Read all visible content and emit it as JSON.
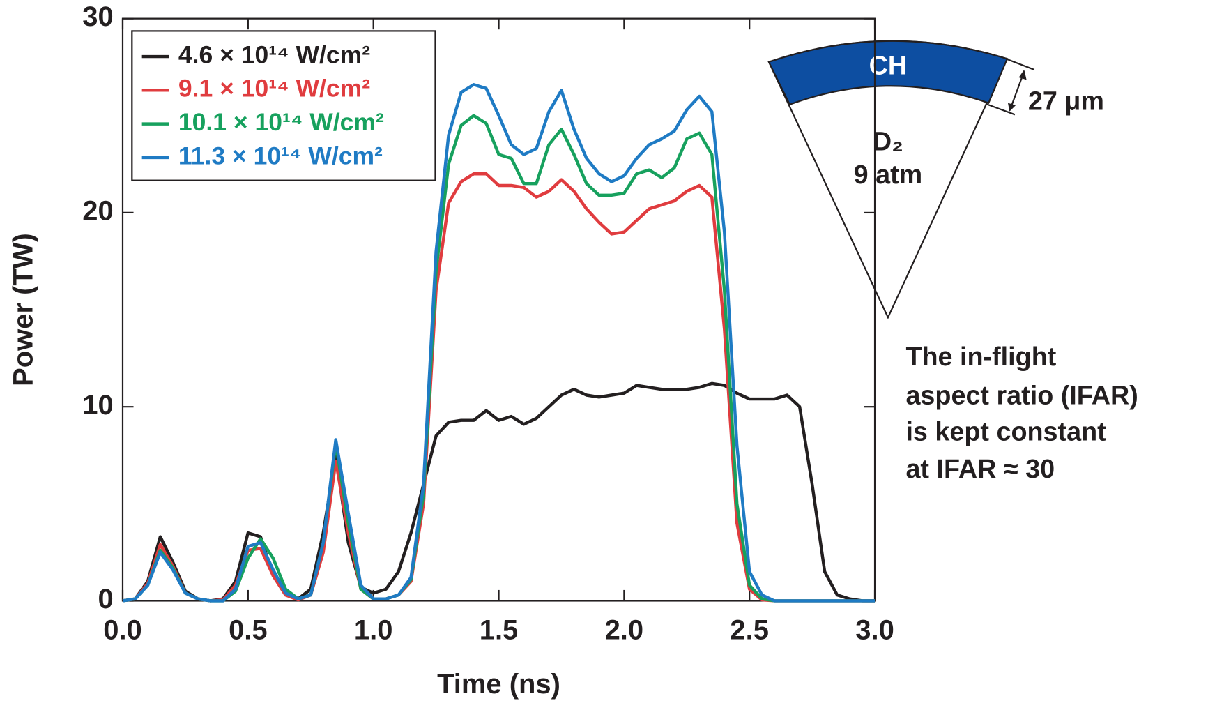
{
  "chart_data": {
    "type": "line",
    "x_label": "Time (ns)",
    "y_label": "Power (TW)",
    "xlim": [
      0,
      3
    ],
    "ylim": [
      0,
      30
    ],
    "xticks": [
      {
        "value": 0,
        "label": "0.0"
      },
      0.5,
      {
        "value": 1,
        "label": "1.0"
      },
      1.5,
      {
        "value": 2,
        "label": "2.0"
      },
      2.5,
      {
        "value": 3,
        "label": "3.0"
      }
    ],
    "yticks": [
      0,
      10,
      20,
      30
    ],
    "legend": "top-left",
    "x": [
      0,
      0.05,
      0.1,
      0.15,
      0.2,
      0.25,
      0.3,
      0.35,
      0.4,
      0.45,
      0.5,
      0.55,
      0.6,
      0.65,
      0.7,
      0.75,
      0.8,
      0.85,
      0.9,
      0.95,
      1,
      1.05,
      1.1,
      1.15,
      1.2,
      1.25,
      1.3,
      1.35,
      1.4,
      1.45,
      1.5,
      1.55,
      1.6,
      1.65,
      1.7,
      1.75,
      1.8,
      1.85,
      1.9,
      1.95,
      2,
      2.05,
      2.1,
      2.15,
      2.2,
      2.25,
      2.3,
      2.35,
      2.4,
      2.45,
      2.5,
      2.55,
      2.6,
      2.65,
      2.7,
      2.75,
      2.8,
      2.85,
      2.9,
      2.95,
      3
    ],
    "series": [
      {
        "name": "4.6 × 10¹⁴ W/cm²",
        "color": "#231f20",
        "values": [
          0,
          0.1,
          1.0,
          3.3,
          2.0,
          0.5,
          0.1,
          0,
          0.1,
          1.0,
          3.5,
          3.3,
          1.3,
          0.3,
          0.1,
          0.6,
          3.5,
          7.5,
          3.0,
          0.7,
          0.4,
          0.6,
          1.5,
          3.5,
          6.0,
          8.5,
          9.2,
          9.3,
          9.3,
          9.8,
          9.3,
          9.5,
          9.1,
          9.4,
          10.0,
          10.6,
          10.9,
          10.6,
          10.5,
          10.6,
          10.7,
          11.1,
          11.0,
          10.9,
          10.9,
          10.9,
          11.0,
          11.2,
          11.1,
          10.7,
          10.4,
          10.4,
          10.4,
          10.6,
          10.0,
          6.0,
          1.5,
          0.3,
          0.1,
          0,
          0
        ]
      },
      {
        "name": "9.1 × 10¹⁴ W/cm²",
        "color": "#e03c3f",
        "values": [
          0,
          0.1,
          0.9,
          2.9,
          1.8,
          0.4,
          0.1,
          0,
          0.05,
          0.8,
          2.6,
          2.7,
          1.3,
          0.3,
          0.05,
          0.3,
          2.5,
          7.2,
          3.5,
          0.6,
          0.1,
          0.1,
          0.3,
          1.0,
          5.0,
          16.0,
          20.5,
          21.6,
          22.0,
          22.0,
          21.4,
          21.4,
          21.3,
          20.8,
          21.1,
          21.7,
          21.1,
          20.2,
          19.5,
          18.9,
          19.0,
          19.6,
          20.2,
          20.4,
          20.6,
          21.1,
          21.4,
          20.8,
          14.0,
          4.0,
          0.6,
          0.05,
          0,
          0,
          0,
          0,
          0,
          0,
          0,
          0,
          0
        ]
      },
      {
        "name": "10.1 × 10¹⁴ W/cm²",
        "color": "#17a15e",
        "values": [
          0,
          0.1,
          0.8,
          2.6,
          1.7,
          0.4,
          0.1,
          0,
          0,
          0.5,
          2.2,
          3.2,
          2.2,
          0.6,
          0.1,
          0.3,
          3.0,
          8.1,
          4.0,
          0.6,
          0.1,
          0.1,
          0.3,
          1.1,
          5.5,
          17.0,
          22.5,
          24.5,
          25.0,
          24.6,
          23.0,
          22.8,
          21.5,
          21.5,
          23.5,
          24.3,
          23.0,
          21.5,
          20.9,
          20.9,
          21.0,
          22.0,
          22.2,
          21.8,
          22.3,
          23.8,
          24.1,
          23.0,
          16.0,
          5.0,
          0.8,
          0.1,
          0,
          0,
          0,
          0,
          0,
          0,
          0,
          0,
          0
        ]
      },
      {
        "name": "11.3 × 10¹⁴ W/cm²",
        "color": "#1f7bc4",
        "values": [
          0,
          0.1,
          0.8,
          2.5,
          1.6,
          0.4,
          0.1,
          0,
          0,
          0.6,
          2.8,
          3.0,
          1.6,
          0.4,
          0.1,
          0.3,
          3.0,
          8.3,
          4.5,
          0.8,
          0.1,
          0.1,
          0.3,
          1.2,
          6.0,
          18.0,
          24.0,
          26.2,
          26.6,
          26.4,
          25.0,
          23.5,
          23.0,
          23.3,
          25.2,
          26.3,
          24.3,
          22.8,
          22.0,
          21.6,
          21.9,
          22.8,
          23.5,
          23.8,
          24.2,
          25.3,
          26.0,
          25.2,
          19.0,
          8.0,
          1.5,
          0.3,
          0,
          0,
          0,
          0,
          0,
          0,
          0,
          0,
          0
        ]
      }
    ],
    "annotations": [
      "CH",
      "D₂",
      "9 atm",
      "27 μm",
      "The in-flight",
      "aspect ratio (IFAR)",
      "is kept constant",
      "at IFAR ≈ 30"
    ]
  }
}
